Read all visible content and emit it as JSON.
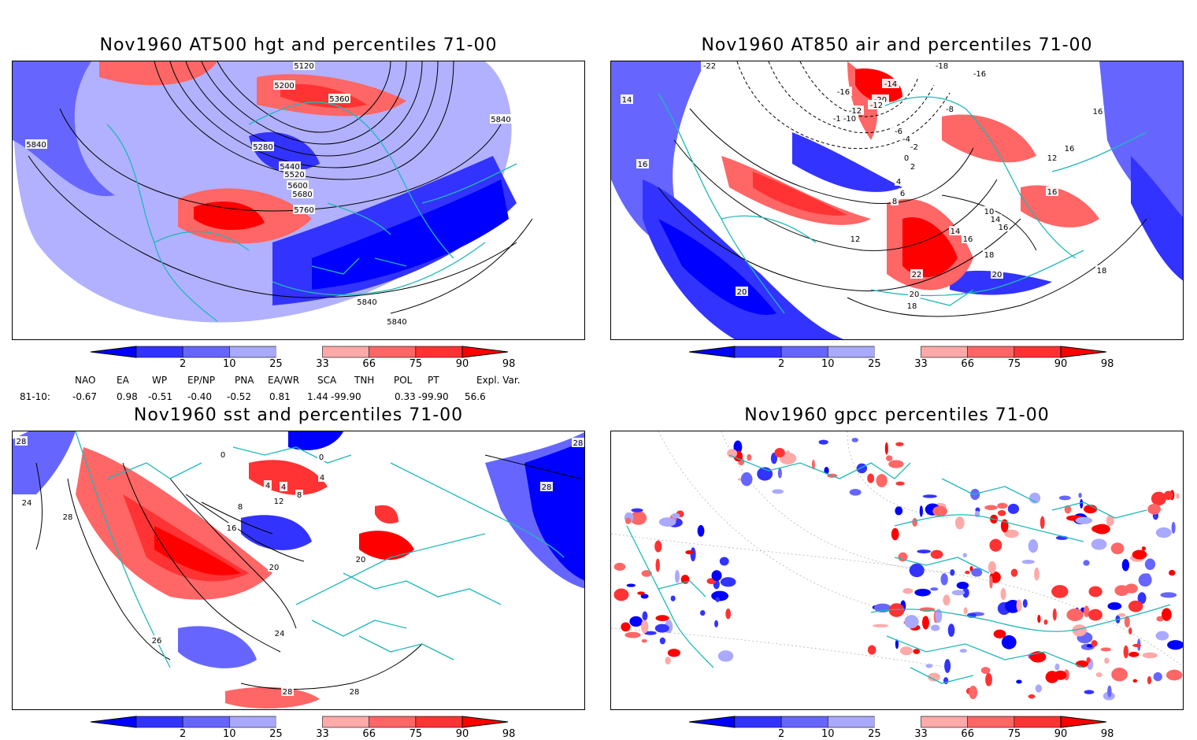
{
  "panels": [
    {
      "id": "p1",
      "title": "Nov1960 AT500 hgt and percentiles 71-00",
      "contour_labels": [
        "5120",
        "5200",
        "5360",
        "5280",
        "5440",
        "5520",
        "5600",
        "5680",
        "5760",
        "5840",
        "5840",
        "5840",
        "5840"
      ]
    },
    {
      "id": "p2",
      "title": "Nov1960 AT850 air and percentiles 71-00",
      "contour_labels": [
        "-22",
        "-18",
        "-16",
        "-20",
        "-16",
        "-14",
        "-12",
        "-10",
        "-8",
        "-12",
        "-10",
        "-6",
        "-4",
        "-2",
        "0",
        "2",
        "4",
        "6",
        "8",
        "10",
        "12",
        "14",
        "16",
        "18",
        "20",
        "22",
        "20",
        "18",
        "16",
        "14",
        "12",
        "16",
        "16",
        "16",
        "14",
        "16",
        "20",
        "18"
      ]
    },
    {
      "id": "p3",
      "title": "Nov1960 sst and percentiles 71-00",
      "contour_labels": [
        "28",
        "24",
        "28",
        "0",
        "4",
        "4",
        "4",
        "8",
        "8",
        "12",
        "16",
        "20",
        "20",
        "24",
        "26",
        "28",
        "28",
        "28",
        "28",
        "0"
      ]
    },
    {
      "id": "p4",
      "title": "Nov1960 gpcc percentiles 71-00",
      "contour_labels": []
    }
  ],
  "colorbar": {
    "labels": [
      "2",
      "10",
      "25",
      "33",
      "66",
      "75",
      "90",
      "98"
    ],
    "colors": [
      "#0000ff",
      "#3333ff",
      "#6666ff",
      "#a9a9ff",
      "#ffffff",
      "#ffa9a9",
      "#ff6666",
      "#ff3333",
      "#ff0000"
    ]
  },
  "indices": {
    "headers": [
      "NAO",
      "EA",
      "WP",
      "EP/NP",
      "PNA",
      "EA/WR",
      "SCA",
      "TNH",
      "POL",
      "PT",
      "Expl. Var."
    ],
    "row_label": "81-10:",
    "values": [
      "-0.67",
      "0.98",
      "-0.51",
      "-0.40",
      "-0.52",
      "0.81",
      "1.44",
      "-99.90",
      "0.33",
      "-99.90",
      "56.6"
    ]
  }
}
